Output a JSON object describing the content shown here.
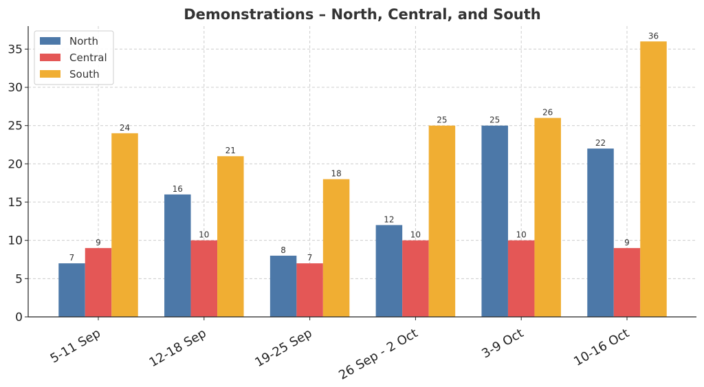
{
  "chart_data": {
    "type": "bar",
    "title": "Demonstrations – North, Central, and South",
    "xlabel": "",
    "ylabel": "",
    "categories": [
      "5-11 Sep",
      "12-18 Sep",
      "19-25 Sep",
      "26 Sep - 2 Oct",
      "3-9 Oct",
      "10-16 Oct"
    ],
    "series": [
      {
        "name": "North",
        "color": "#4c78a8",
        "values": [
          7,
          16,
          8,
          12,
          25,
          22
        ]
      },
      {
        "name": "Central",
        "color": "#e45756",
        "values": [
          9,
          10,
          7,
          10,
          10,
          9
        ]
      },
      {
        "name": "South",
        "color": "#f0ae33",
        "values": [
          24,
          21,
          18,
          25,
          26,
          36
        ]
      }
    ],
    "ylim": [
      0,
      38
    ],
    "yticks": [
      0,
      5,
      10,
      15,
      20,
      25,
      30,
      35
    ],
    "grid": true,
    "legend_position": "top-left",
    "data_labels": true
  }
}
